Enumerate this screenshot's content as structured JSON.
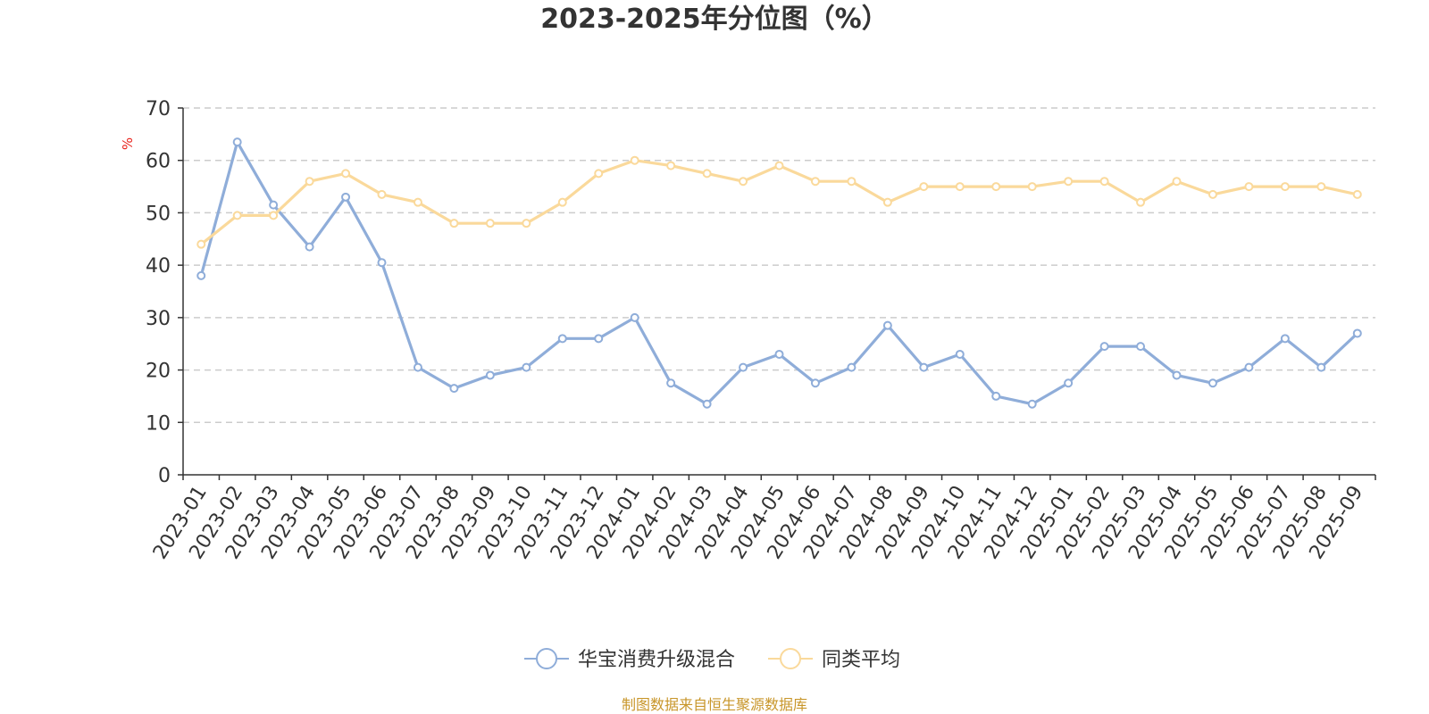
{
  "chart_data": {
    "type": "line",
    "title": "2023-2025年分位图（%）",
    "ylabel": "%",
    "xlabel": "",
    "ylim": [
      0,
      70
    ],
    "yticks": [
      0,
      10,
      20,
      30,
      40,
      50,
      60,
      70
    ],
    "grid": true,
    "legend_position": "bottom-center",
    "categories": [
      "2023-01",
      "2023-02",
      "2023-03",
      "2023-04",
      "2023-05",
      "2023-06",
      "2023-07",
      "2023-08",
      "2023-09",
      "2023-10",
      "2023-11",
      "2023-12",
      "2024-01",
      "2024-02",
      "2024-03",
      "2024-04",
      "2024-05",
      "2024-06",
      "2024-07",
      "2024-08",
      "2024-09",
      "2024-10",
      "2024-11",
      "2024-12",
      "2025-01",
      "2025-02",
      "2025-03",
      "2025-04",
      "2025-05",
      "2025-06",
      "2025-07",
      "2025-08",
      "2025-09"
    ],
    "series": [
      {
        "name": "华宝消费升级混合",
        "color": "#8fadd9",
        "values": [
          38,
          63.5,
          51.5,
          43.5,
          53,
          40.5,
          20.5,
          16.5,
          19,
          20.5,
          26,
          26,
          30,
          17.5,
          13.5,
          20.5,
          23,
          17.5,
          20.5,
          28.5,
          20.5,
          23,
          15,
          13.5,
          17.5,
          24.5,
          24.5,
          19,
          17.5,
          20.5,
          26,
          20.5,
          27
        ]
      },
      {
        "name": "同类平均",
        "color": "#fad99b",
        "values": [
          44,
          49.5,
          49.5,
          56,
          57.5,
          53.5,
          52,
          48,
          48,
          48,
          52,
          57.5,
          60,
          59,
          57.5,
          56,
          59,
          56,
          56,
          52,
          55,
          55,
          55,
          55,
          56,
          56,
          52,
          56,
          53.5,
          55,
          55,
          55,
          53.5
        ]
      }
    ]
  },
  "source": {
    "text": "制图数据来自恒生聚源数据库",
    "color": "#c8962a"
  },
  "unit_color": "#e8221b"
}
